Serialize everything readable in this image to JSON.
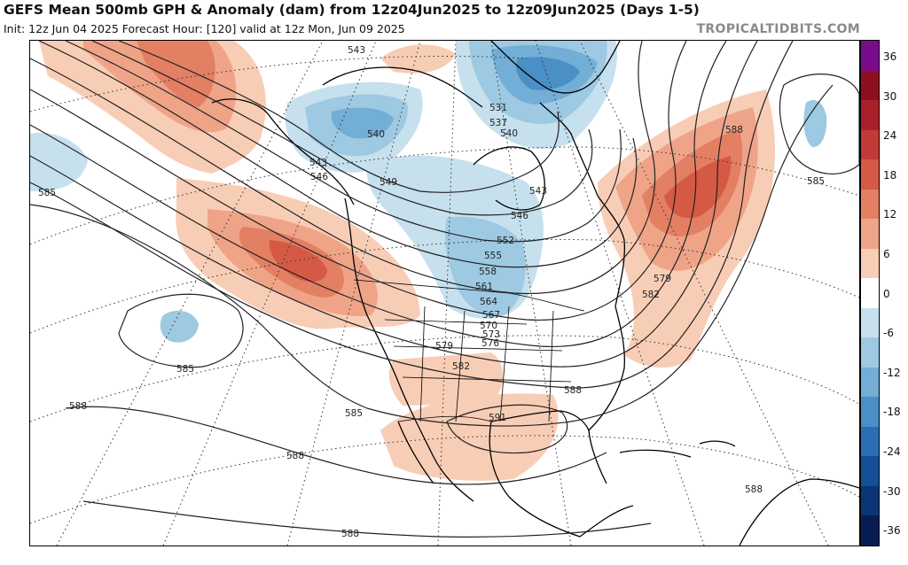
{
  "header": {
    "title": "GEFS Mean 500mb GPH & Anomaly (dam) from 12z04Jun2025 to 12z09Jun2025 (Days 1-5)",
    "subtitle": "Init: 12z Jun 04 2025   Forecast Hour: [120]   valid at 12z Mon, Jun 09 2025",
    "brand": "TROPICALTIDBITS.COM"
  },
  "colorbar": {
    "ticks": [
      "36",
      "30",
      "24",
      "18",
      "12",
      "6",
      "0",
      "-6",
      "-12",
      "-18",
      "-24",
      "-30",
      "-36"
    ],
    "colors": [
      "#7a0b8c",
      "#8e1020",
      "#a8212a",
      "#c23a35",
      "#d45a45",
      "#e37f63",
      "#efa488",
      "#f8cdb6",
      "#ffffff",
      "#c6e0ee",
      "#9ec9e2",
      "#72aed5",
      "#4a8fc6",
      "#2a6fb3",
      "#154f96",
      "#0a3576",
      "#061e52"
    ]
  },
  "map": {
    "contour_labels": [
      {
        "text": "543"
      },
      {
        "text": "531"
      },
      {
        "text": "537"
      },
      {
        "text": "540"
      },
      {
        "text": "540"
      },
      {
        "text": "543"
      },
      {
        "text": "546"
      },
      {
        "text": "549"
      },
      {
        "text": "543"
      },
      {
        "text": "546"
      },
      {
        "text": "552"
      },
      {
        "text": "555"
      },
      {
        "text": "558"
      },
      {
        "text": "561"
      },
      {
        "text": "564"
      },
      {
        "text": "567"
      },
      {
        "text": "570"
      },
      {
        "text": "573"
      },
      {
        "text": "576"
      },
      {
        "text": "579"
      },
      {
        "text": "579"
      },
      {
        "text": "582"
      },
      {
        "text": "582"
      },
      {
        "text": "585"
      },
      {
        "text": "585"
      },
      {
        "text": "585"
      },
      {
        "text": "585"
      },
      {
        "text": "588"
      },
      {
        "text": "588"
      },
      {
        "text": "588"
      },
      {
        "text": "588"
      },
      {
        "text": "588"
      },
      {
        "text": "588"
      },
      {
        "text": "591"
      }
    ]
  }
}
